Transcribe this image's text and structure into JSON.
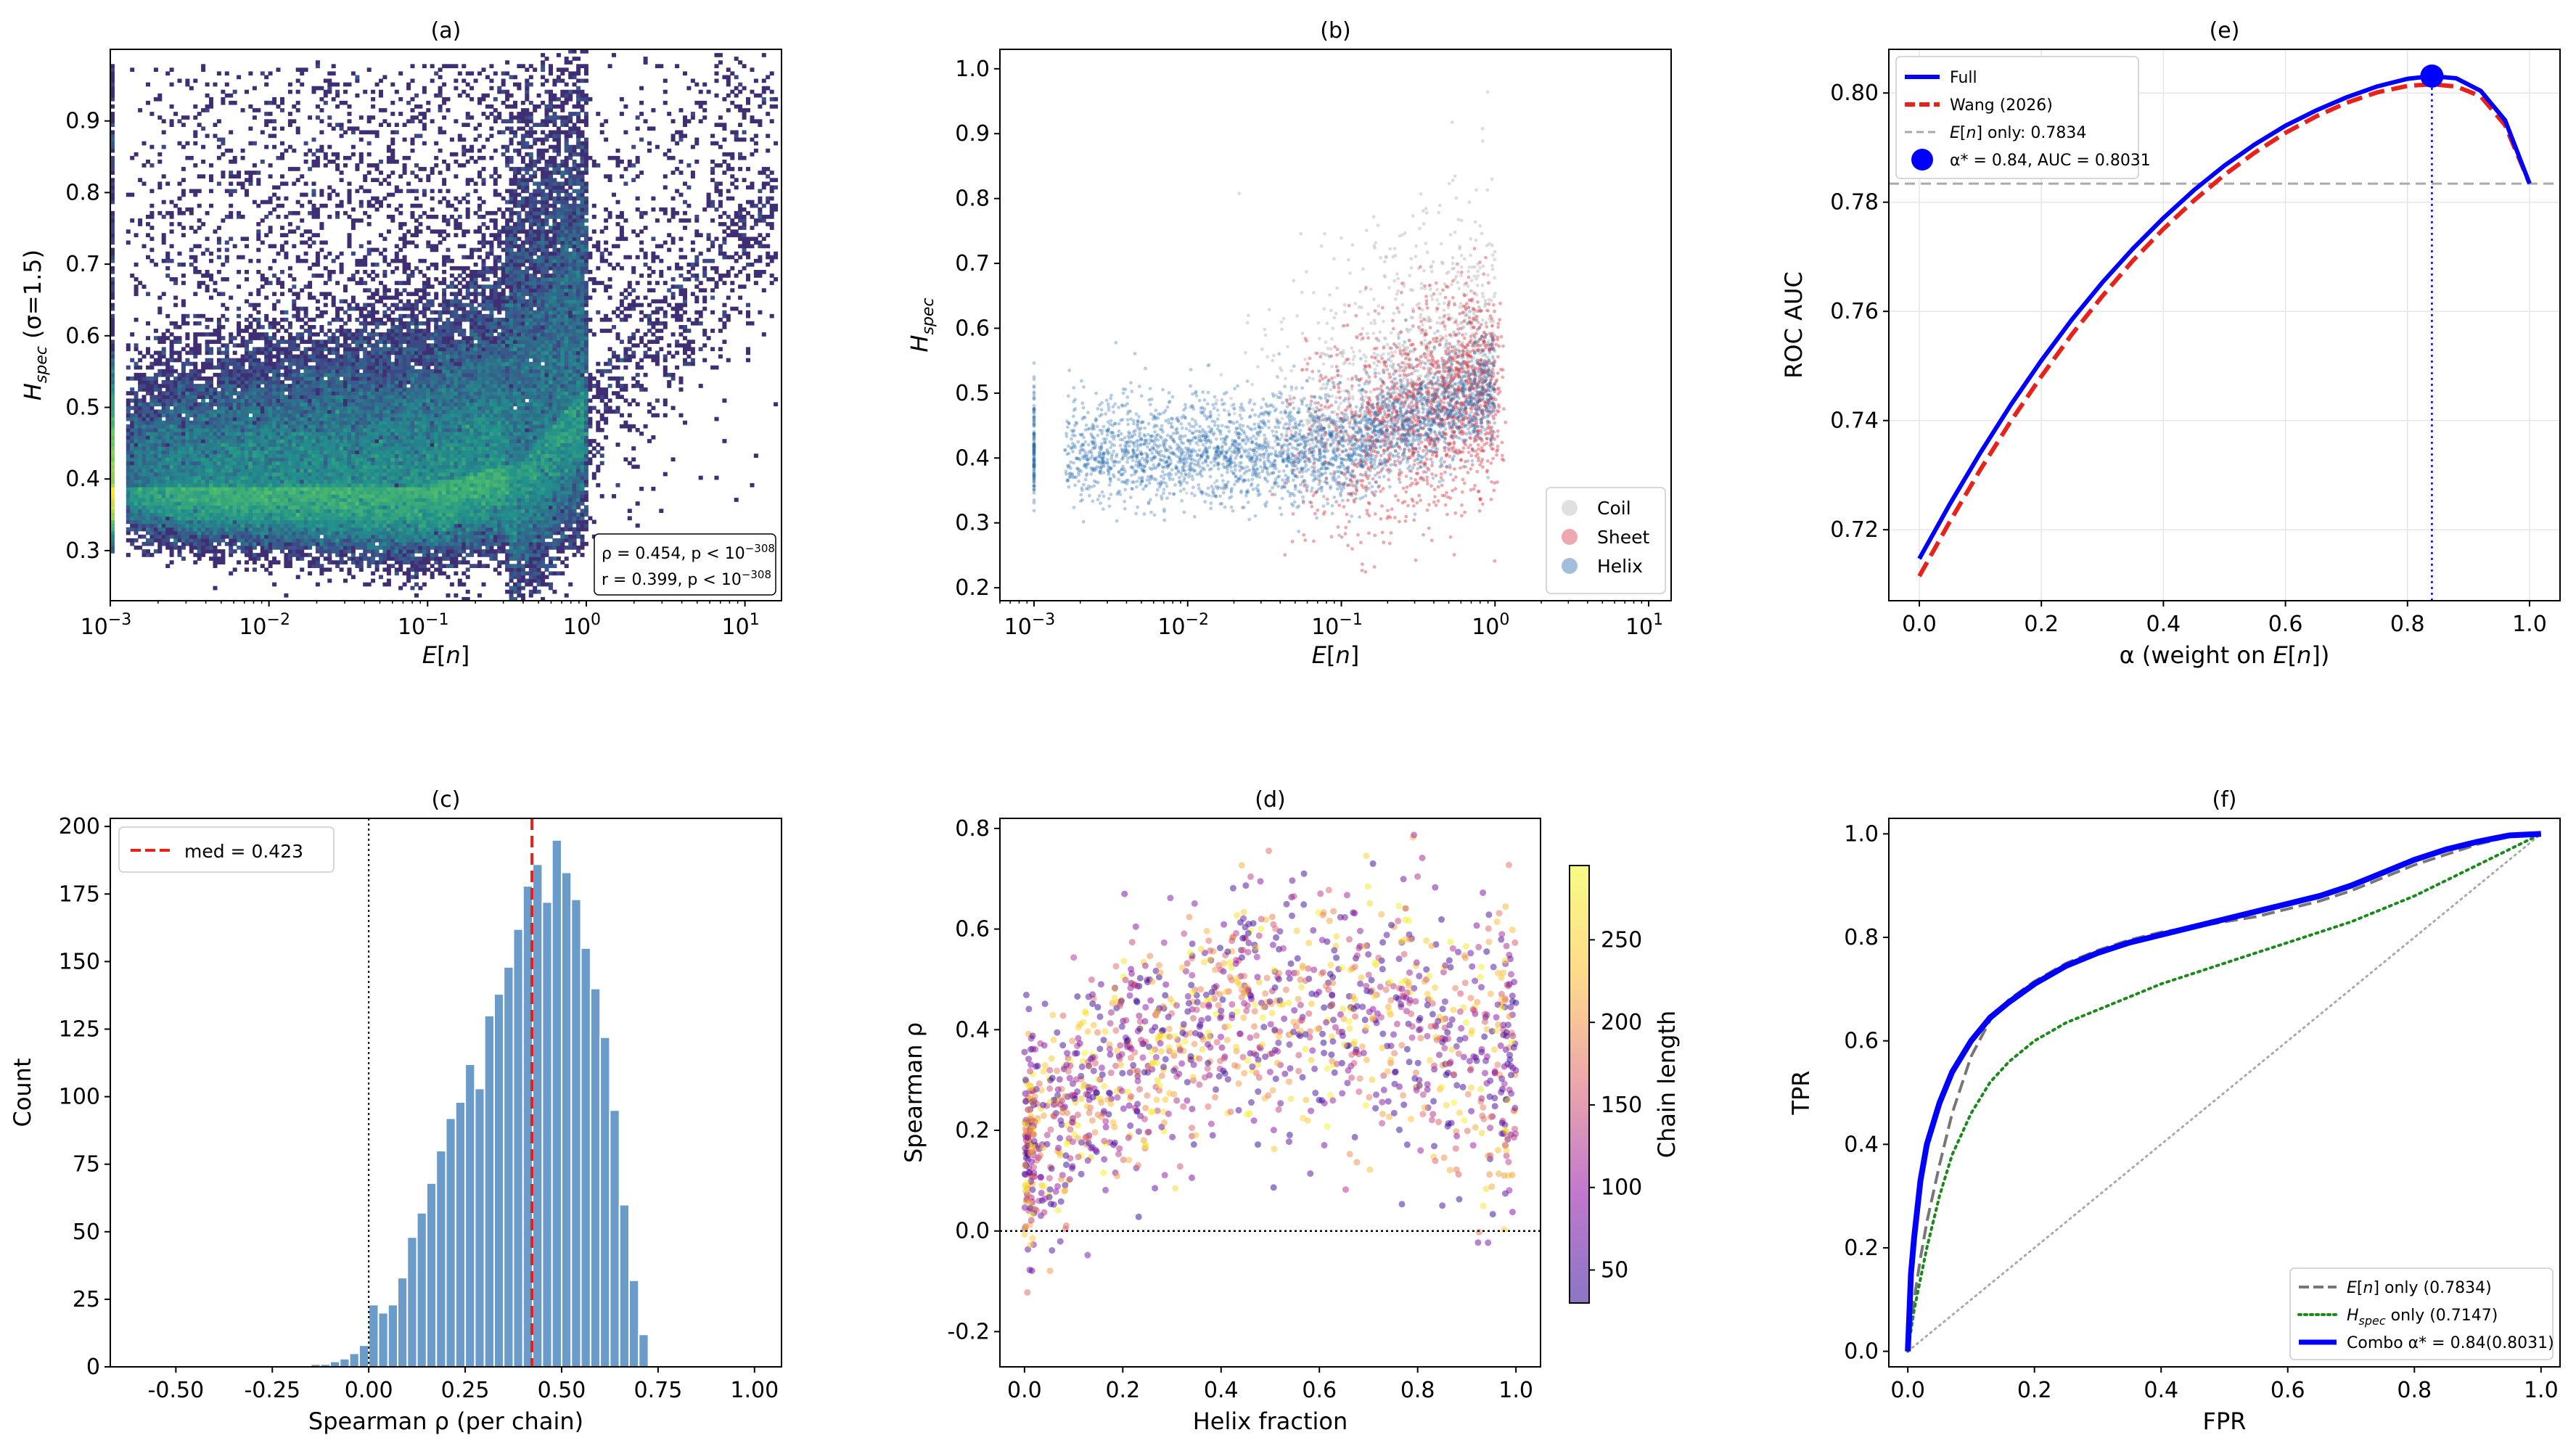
{
  "chart_data": [
    {
      "id": "a",
      "type": "heatmap",
      "title": "(a)",
      "xlabel": "E[n]",
      "ylabel": "H_spec (σ=1.5)",
      "xscale": "log",
      "xlim": [
        0.001,
        17
      ],
      "ylim": [
        0.23,
        1.0
      ],
      "x_ticks": [
        {
          "v": 0.001,
          "b": "10",
          "e": "−3"
        },
        {
          "v": 0.01,
          "b": "10",
          "e": "−2"
        },
        {
          "v": 0.1,
          "b": "10",
          "e": "−1"
        },
        {
          "v": 1,
          "b": "10",
          "e": "0"
        },
        {
          "v": 10,
          "b": "10",
          "e": "1"
        }
      ],
      "y_ticks": [
        0.3,
        0.4,
        0.5,
        0.6,
        0.7,
        0.8,
        0.9
      ],
      "stats": [
        "ρ = 0.454, p < 10^−308",
        "r = 0.399, p < 10^−308"
      ],
      "colormap": [
        "#440154",
        "#3b528b",
        "#21918c",
        "#5ec962",
        "#fde725"
      ]
    },
    {
      "id": "b",
      "type": "scatter",
      "title": "(b)",
      "xlabel": "E[n]",
      "ylabel": "H_spec",
      "xscale": "log",
      "xlim": [
        0.0006,
        14
      ],
      "ylim": [
        0.18,
        1.03
      ],
      "x_ticks": [
        {
          "v": 0.001,
          "b": "10",
          "e": "−3"
        },
        {
          "v": 0.01,
          "b": "10",
          "e": "−2"
        },
        {
          "v": 0.1,
          "b": "10",
          "e": "−1"
        },
        {
          "v": 1,
          "b": "10",
          "e": "0"
        },
        {
          "v": 10,
          "b": "10",
          "e": "1"
        }
      ],
      "y_ticks": [
        0.2,
        0.3,
        0.4,
        0.5,
        0.6,
        0.7,
        0.8,
        0.9,
        1.0
      ],
      "legend": [
        {
          "label": "Coil",
          "color": "#bbbbbb"
        },
        {
          "label": "Sheet",
          "color": "#d6404e"
        },
        {
          "label": "Helix",
          "color": "#2e6fb0"
        }
      ]
    },
    {
      "id": "e",
      "type": "line",
      "title": "(e)",
      "xlabel": "α (weight on E[n])",
      "ylabel": "ROC AUC",
      "xlim": [
        -0.05,
        1.05
      ],
      "ylim": [
        0.707,
        0.808
      ],
      "x_ticks": [
        0.0,
        0.2,
        0.4,
        0.6,
        0.8,
        1.0
      ],
      "y_ticks": [
        0.72,
        0.74,
        0.76,
        0.78,
        0.8
      ],
      "x": [
        0.0,
        0.05,
        0.1,
        0.15,
        0.2,
        0.25,
        0.3,
        0.35,
        0.4,
        0.45,
        0.5,
        0.55,
        0.6,
        0.65,
        0.7,
        0.75,
        0.8,
        0.84,
        0.88,
        0.92,
        0.96,
        1.0
      ],
      "series": [
        {
          "name": "Full",
          "color": "#0000ff",
          "style": "solid",
          "values": [
            0.7147,
            0.7247,
            0.7341,
            0.7429,
            0.751,
            0.7585,
            0.7653,
            0.7715,
            0.7771,
            0.7822,
            0.7867,
            0.7906,
            0.794,
            0.7968,
            0.7992,
            0.8012,
            0.8026,
            0.8031,
            0.8027,
            0.8004,
            0.795,
            0.7834
          ]
        },
        {
          "name": "Wang (2026)",
          "color": "#e8211b",
          "style": "dashed",
          "values": [
            0.7115,
            0.7215,
            0.731,
            0.7399,
            0.7481,
            0.7558,
            0.7628,
            0.7693,
            0.7751,
            0.7803,
            0.785,
            0.7891,
            0.7927,
            0.7957,
            0.7982,
            0.8001,
            0.8013,
            0.8016,
            0.8012,
            0.7994,
            0.7941,
            0.7834
          ]
        }
      ],
      "baseline": {
        "label": "E[n] only: 0.7834",
        "value": 0.7834,
        "color": "#aaaaaa"
      },
      "optimum": {
        "label": "α* = 0.84, AUC = 0.8031",
        "alpha": 0.84,
        "auc": 0.8031,
        "color": "#0000ff"
      }
    },
    {
      "id": "c",
      "type": "bar",
      "title": "(c)",
      "xlabel": "Spearman ρ (per chain)",
      "ylabel": "Count",
      "xlim": [
        -0.67,
        1.07
      ],
      "ylim": [
        0,
        203
      ],
      "x_ticks": [
        -0.5,
        -0.25,
        0.0,
        0.25,
        0.5,
        0.75,
        1.0
      ],
      "y_ticks": [
        0,
        25,
        50,
        75,
        100,
        125,
        150,
        175,
        200
      ],
      "bin_width": 0.025,
      "bins": [
        -0.15,
        -0.125,
        -0.1,
        -0.075,
        -0.05,
        -0.025,
        0.0,
        0.025,
        0.05,
        0.075,
        0.1,
        0.125,
        0.15,
        0.175,
        0.2,
        0.225,
        0.25,
        0.275,
        0.3,
        0.325,
        0.35,
        0.375,
        0.4,
        0.425,
        0.45,
        0.475,
        0.5,
        0.525,
        0.55,
        0.575,
        0.6,
        0.625,
        0.65,
        0.675,
        0.7
      ],
      "values": [
        1,
        1,
        2,
        3,
        5,
        8,
        23,
        20,
        23,
        33,
        48,
        57,
        68,
        80,
        92,
        98,
        112,
        103,
        130,
        138,
        148,
        162,
        178,
        186,
        172,
        195,
        183,
        173,
        155,
        140,
        122,
        95,
        60,
        32,
        12
      ],
      "bar_color": "#6b9bc8",
      "median": {
        "label": "med = 0.423",
        "value": 0.423,
        "color": "#e8211b"
      }
    },
    {
      "id": "d",
      "type": "scatter",
      "title": "(d)",
      "xlabel": "Helix fraction",
      "ylabel": "Spearman ρ",
      "xlim": [
        -0.05,
        1.05
      ],
      "ylim": [
        -0.27,
        0.82
      ],
      "x_ticks": [
        0.0,
        0.2,
        0.4,
        0.6,
        0.8,
        1.0
      ],
      "y_ticks": [
        -0.2,
        0.0,
        0.2,
        0.4,
        0.6,
        0.8
      ],
      "colorbar": {
        "label": "Chain length",
        "min": 30,
        "max": 295,
        "ticks": [
          50,
          100,
          150,
          200,
          250
        ]
      },
      "colormap": [
        "#2c0594",
        "#8b0aa5",
        "#db5c68",
        "#febc2a",
        "#f0f921"
      ]
    },
    {
      "id": "f",
      "type": "line",
      "title": "(f)",
      "xlabel": "FPR",
      "ylabel": "TPR",
      "xlim": [
        -0.03,
        1.03
      ],
      "ylim": [
        -0.03,
        1.03
      ],
      "x_ticks": [
        0.0,
        0.2,
        0.4,
        0.6,
        0.8,
        1.0
      ],
      "y_ticks": [
        0.0,
        0.2,
        0.4,
        0.6,
        0.8,
        1.0
      ],
      "fpr": [
        0,
        0.005,
        0.01,
        0.02,
        0.03,
        0.05,
        0.07,
        0.1,
        0.13,
        0.16,
        0.2,
        0.25,
        0.3,
        0.35,
        0.4,
        0.45,
        0.5,
        0.55,
        0.6,
        0.65,
        0.7,
        0.75,
        0.8,
        0.85,
        0.9,
        0.95,
        1.0
      ],
      "series": [
        {
          "name": "E[n] only (0.7834)",
          "label_main": "E[n]",
          "label_rest": " only (0.7834)",
          "color": "#777777",
          "style": "dashed",
          "values": [
            0,
            0.05,
            0.1,
            0.18,
            0.25,
            0.36,
            0.46,
            0.57,
            0.64,
            0.68,
            0.715,
            0.75,
            0.775,
            0.795,
            0.81,
            0.82,
            0.83,
            0.84,
            0.855,
            0.87,
            0.89,
            0.915,
            0.94,
            0.96,
            0.98,
            0.995,
            1.0
          ]
        },
        {
          "name": "H_spec only (0.7147)",
          "label_main": "H",
          "label_sub": "spec",
          "label_rest": " only (0.7147)",
          "color": "#1a8a1a",
          "style": "dotted",
          "values": [
            0,
            0.04,
            0.08,
            0.14,
            0.2,
            0.3,
            0.38,
            0.46,
            0.52,
            0.56,
            0.6,
            0.635,
            0.66,
            0.685,
            0.71,
            0.73,
            0.75,
            0.77,
            0.79,
            0.81,
            0.83,
            0.855,
            0.88,
            0.91,
            0.94,
            0.97,
            1.0
          ]
        },
        {
          "name": "Combo α* = 0.84(0.8031)",
          "label_main": "Combo α* = 0.84(0.8031)",
          "color": "#0000ff",
          "style": "solid",
          "values": [
            0,
            0.15,
            0.22,
            0.33,
            0.4,
            0.48,
            0.54,
            0.6,
            0.645,
            0.675,
            0.71,
            0.745,
            0.77,
            0.79,
            0.805,
            0.82,
            0.835,
            0.85,
            0.865,
            0.88,
            0.9,
            0.925,
            0.95,
            0.97,
            0.985,
            0.997,
            1.0
          ]
        }
      ],
      "diagonal": {
        "color": "#aaaaaa",
        "style": "dotted"
      }
    }
  ]
}
